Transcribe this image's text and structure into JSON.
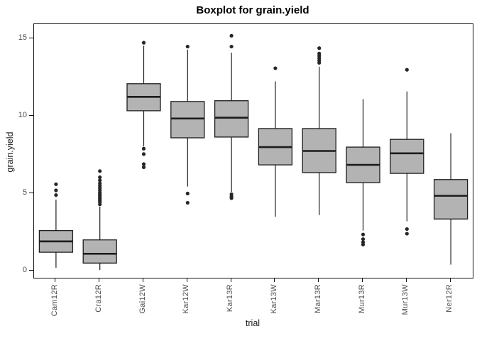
{
  "title": "Boxplot for grain.yield",
  "chart_data": {
    "type": "boxplot",
    "title": "Boxplot for grain.yield",
    "xlabel": "trial",
    "ylabel": "grain.yield",
    "categories": [
      "Cam12R",
      "Cra12R",
      "Gai12W",
      "Kar12W",
      "Kar13R",
      "Kar13W",
      "Mar13R",
      "Mur13R",
      "Mur13W",
      "Ner12R"
    ],
    "y_ticks": [
      0,
      5,
      10,
      15
    ],
    "ylim": [
      -0.45,
      15.95
    ],
    "grid": false,
    "legend": "none",
    "colors": {
      "box_fill": "#b3b3b3",
      "stroke": "#1c1c1c",
      "outlier": "#262626",
      "tick_label": "#4d4d4d",
      "axis_line": "#111111"
    },
    "boxes": [
      {
        "label": "Cam12R",
        "whisker_low": 0.2,
        "q1": 1.2,
        "median": 1.9,
        "q3": 2.6,
        "whisker_high": 4.6,
        "outliers": [
          4.9,
          5.2,
          5.6
        ]
      },
      {
        "label": "Cra12R",
        "whisker_low": 0.05,
        "q1": 0.5,
        "median": 1.1,
        "q3": 2.0,
        "whisker_high": 4.15,
        "outliers": [
          4.3,
          4.45,
          4.55,
          4.65,
          4.75,
          4.85,
          4.95,
          5.05,
          5.2,
          5.35,
          5.5,
          5.65,
          5.85,
          6.05,
          6.45
        ]
      },
      {
        "label": "Gai12W",
        "whisker_low": 8.05,
        "q1": 10.35,
        "median": 11.25,
        "q3": 12.1,
        "whisker_high": 14.55,
        "outliers": [
          14.75,
          7.9,
          7.55,
          6.9,
          6.7
        ]
      },
      {
        "label": "Kar12W",
        "whisker_low": 5.45,
        "q1": 8.6,
        "median": 9.85,
        "q3": 10.95,
        "whisker_high": 14.3,
        "outliers": [
          14.5,
          5.0,
          4.4
        ]
      },
      {
        "label": "Kar13R",
        "whisker_low": 5.1,
        "q1": 8.65,
        "median": 9.9,
        "q3": 11.0,
        "whisker_high": 14.1,
        "outliers": [
          15.2,
          14.5,
          4.95,
          4.8,
          4.7
        ]
      },
      {
        "label": "Kar13W",
        "whisker_low": 3.5,
        "q1": 6.85,
        "median": 8.0,
        "q3": 9.2,
        "whisker_high": 12.25,
        "outliers": [
          13.1
        ]
      },
      {
        "label": "Mar13R",
        "whisker_low": 3.6,
        "q1": 6.35,
        "median": 7.75,
        "q3": 9.2,
        "whisker_high": 13.2,
        "outliers": [
          14.4,
          14.05,
          13.9,
          13.75,
          13.6,
          13.45
        ]
      },
      {
        "label": "Mur13R",
        "whisker_low": 2.6,
        "q1": 5.7,
        "median": 6.85,
        "q3": 8.0,
        "whisker_high": 11.1,
        "outliers": [
          2.35,
          2.05,
          1.85,
          1.7
        ]
      },
      {
        "label": "Mur13W",
        "whisker_low": 3.2,
        "q1": 6.3,
        "median": 7.6,
        "q3": 8.5,
        "whisker_high": 11.6,
        "outliers": [
          13.0,
          2.7,
          2.4
        ]
      },
      {
        "label": "Ner12R",
        "whisker_low": 0.4,
        "q1": 3.35,
        "median": 4.85,
        "q3": 5.9,
        "whisker_high": 8.9,
        "outliers": []
      }
    ]
  }
}
